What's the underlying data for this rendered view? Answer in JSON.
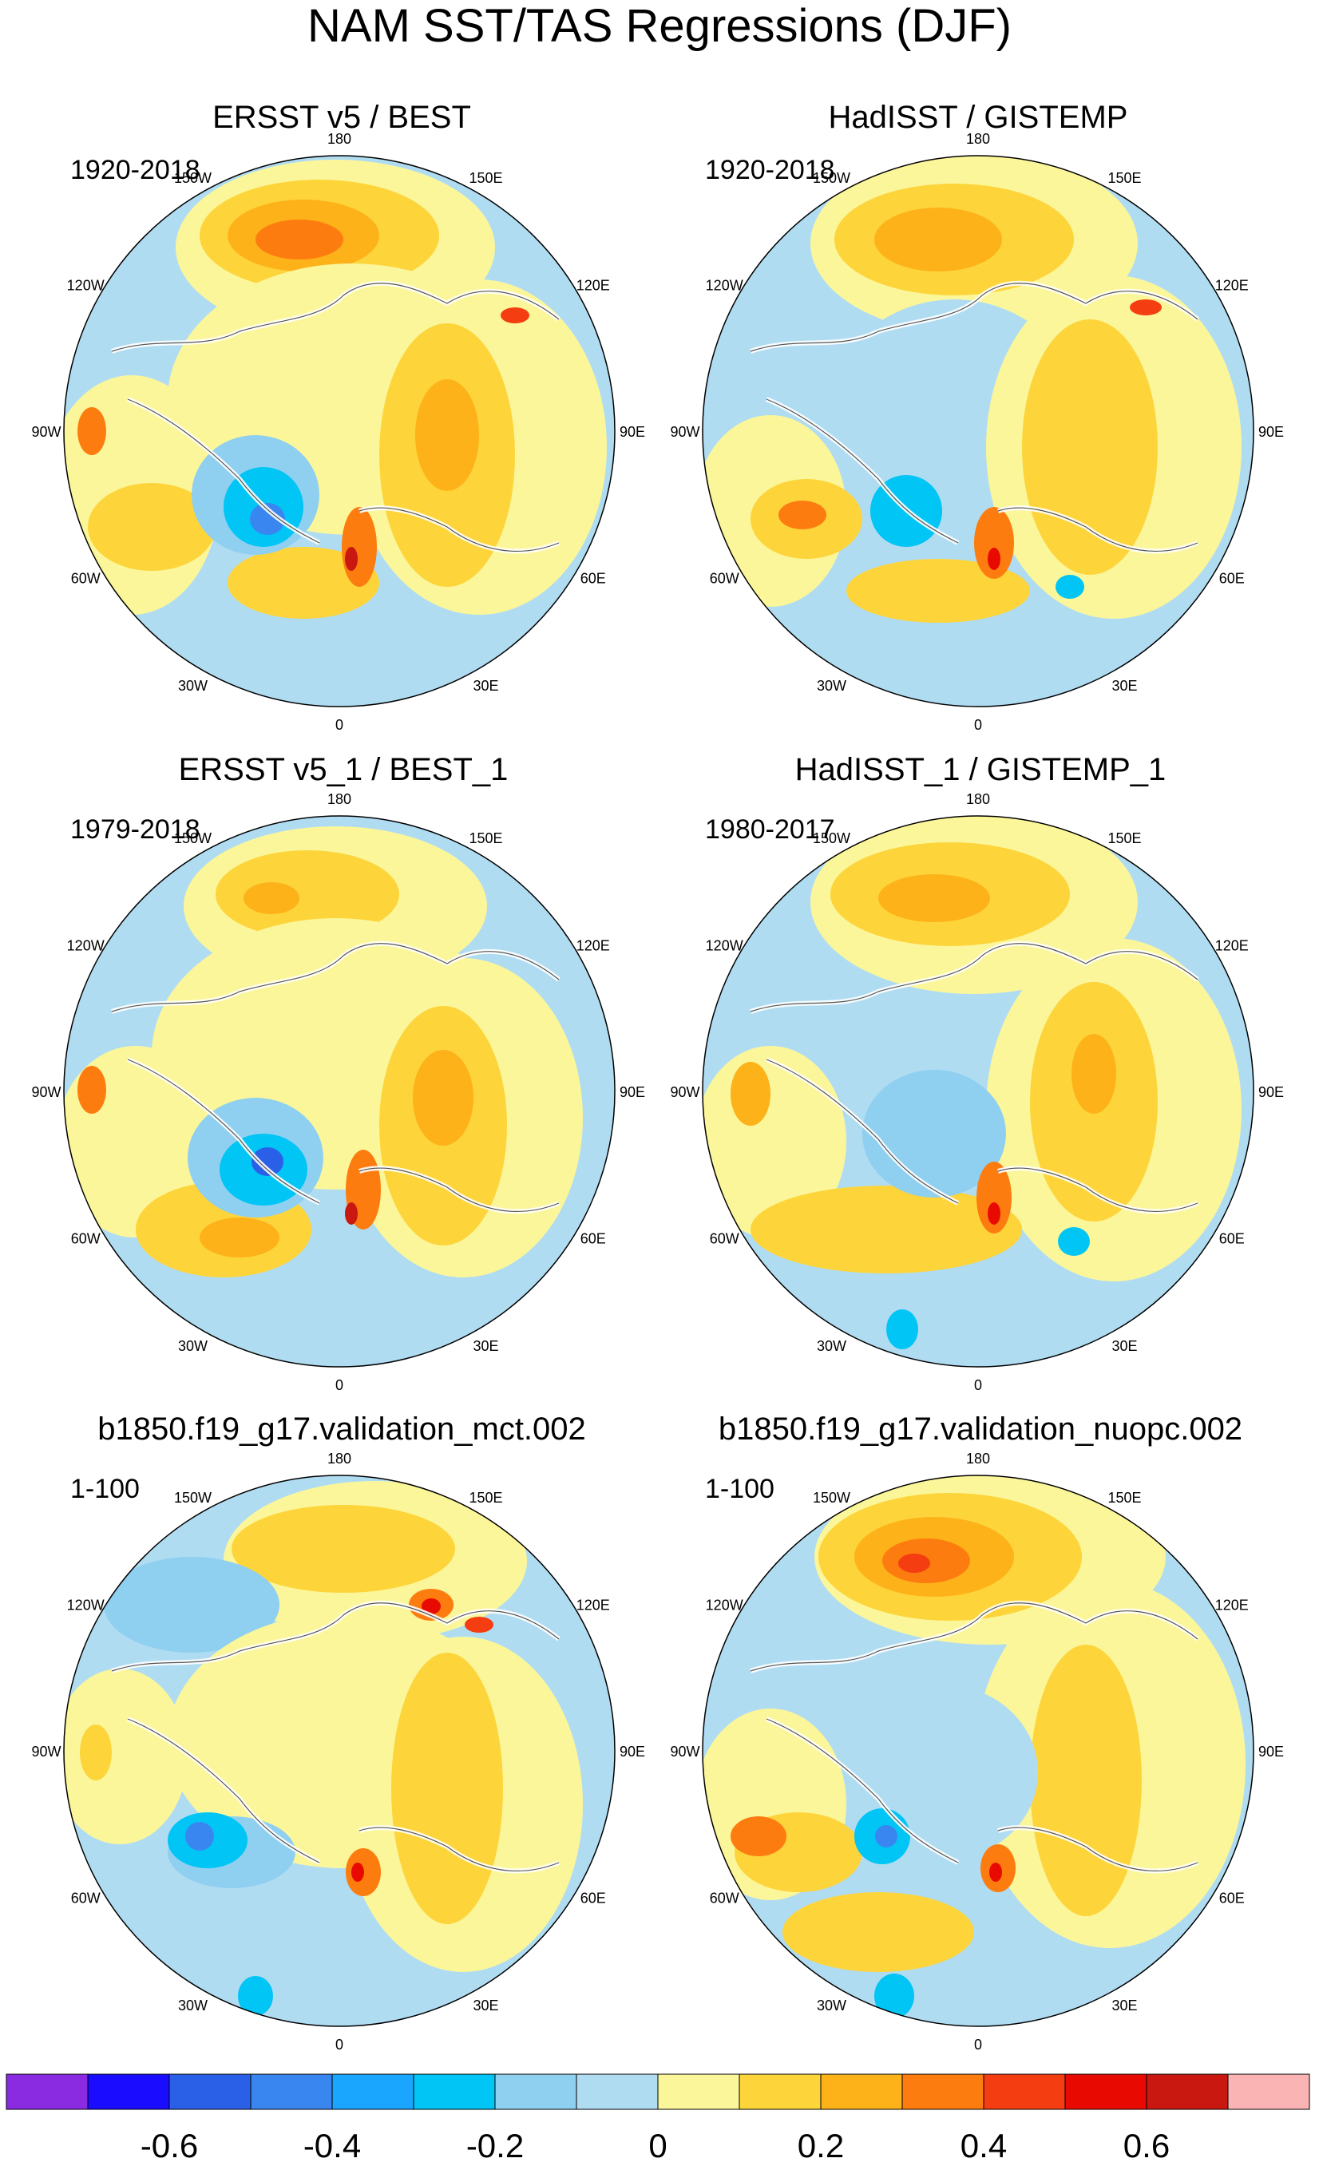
{
  "figure": {
    "title": "NAM SST/TAS Regressions (DJF)"
  },
  "chart_data": [
    {
      "type": "heatmap",
      "projection": "north-polar-stereographic",
      "title": "ERSST v5 / BEST",
      "period": "1920-2018",
      "longitude_labels": [
        "180",
        "150E",
        "120E",
        "90E",
        "60E",
        "30E",
        "0",
        "30W",
        "60W",
        "90W",
        "120W",
        "150W"
      ],
      "features": [
        {
          "name": "north-pacific-warm-center",
          "lon": -165,
          "lat": 45,
          "value": 0.4
        },
        {
          "name": "eurasia-warm-band",
          "lon": 80,
          "lat": 55,
          "value": 0.3
        },
        {
          "name": "north-america-warm",
          "lon": -95,
          "lat": 40,
          "value": 0.2
        },
        {
          "name": "labrador-greenland-cold",
          "lon": -55,
          "lat": 65,
          "value": -0.3
        },
        {
          "name": "scandinavia-warm-max",
          "lon": 20,
          "lat": 62,
          "value": 0.6
        }
      ]
    },
    {
      "type": "heatmap",
      "projection": "north-polar-stereographic",
      "title": "HadISST / GISTEMP",
      "period": "1920-2018",
      "longitude_labels": [
        "180",
        "150E",
        "120E",
        "90E",
        "60E",
        "30E",
        "0",
        "30W",
        "60W",
        "90W",
        "120W",
        "150W"
      ],
      "features": [
        {
          "name": "north-pacific-warm-center",
          "lon": -165,
          "lat": 45,
          "value": 0.3
        },
        {
          "name": "eurasia-warm-band",
          "lon": 80,
          "lat": 55,
          "value": 0.3
        },
        {
          "name": "gulf-stream-warm",
          "lon": -70,
          "lat": 38,
          "value": 0.4
        },
        {
          "name": "labrador-greenland-cold",
          "lon": -55,
          "lat": 65,
          "value": -0.3
        },
        {
          "name": "scandinavia-warm-max",
          "lon": 20,
          "lat": 62,
          "value": 0.5
        }
      ]
    },
    {
      "type": "heatmap",
      "projection": "north-polar-stereographic",
      "title": "ERSST v5_1 / BEST_1",
      "period": "1979-2018",
      "longitude_labels": [
        "180",
        "150E",
        "120E",
        "90E",
        "60E",
        "30E",
        "0",
        "30W",
        "60W",
        "90W",
        "120W",
        "150W"
      ],
      "features": [
        {
          "name": "north-pacific-warm-center",
          "lon": -165,
          "lat": 45,
          "value": 0.3
        },
        {
          "name": "eurasia-warm-band",
          "lon": 80,
          "lat": 55,
          "value": 0.3
        },
        {
          "name": "subtropical-atlantic-warm",
          "lon": -45,
          "lat": 40,
          "value": 0.3
        },
        {
          "name": "labrador-greenland-cold",
          "lon": -55,
          "lat": 65,
          "value": -0.4
        },
        {
          "name": "scandinavia-warm-max",
          "lon": 20,
          "lat": 62,
          "value": 0.6
        }
      ]
    },
    {
      "type": "heatmap",
      "projection": "north-polar-stereographic",
      "title": "HadISST_1 / GISTEMP_1",
      "period": "1980-2017",
      "longitude_labels": [
        "180",
        "150E",
        "120E",
        "90E",
        "60E",
        "30E",
        "0",
        "30W",
        "60W",
        "90W",
        "120W",
        "150W"
      ],
      "features": [
        {
          "name": "north-pacific-warm-center",
          "lon": -165,
          "lat": 45,
          "value": 0.3
        },
        {
          "name": "eurasia-warm-band",
          "lon": 80,
          "lat": 55,
          "value": 0.3
        },
        {
          "name": "subtropical-atlantic-warm",
          "lon": -50,
          "lat": 40,
          "value": 0.3
        },
        {
          "name": "labrador-greenland-cold",
          "lon": -55,
          "lat": 65,
          "value": -0.2
        },
        {
          "name": "scandinavia-warm-max",
          "lon": 20,
          "lat": 62,
          "value": 0.5
        }
      ]
    },
    {
      "type": "heatmap",
      "projection": "north-polar-stereographic",
      "title": "b1850.f19_g17.validation_mct.002",
      "period": "1-100",
      "longitude_labels": [
        "180",
        "150E",
        "120E",
        "90E",
        "60E",
        "30E",
        "0",
        "30W",
        "60W",
        "90W",
        "120W",
        "150W"
      ],
      "features": [
        {
          "name": "north-pacific-warm-center",
          "lon": -165,
          "lat": 45,
          "value": 0.3
        },
        {
          "name": "east-siberia-warm-max",
          "lon": 135,
          "lat": 62,
          "value": 0.6
        },
        {
          "name": "eurasia-warm-band",
          "lon": 80,
          "lat": 55,
          "value": 0.3
        },
        {
          "name": "labrador-cold",
          "lon": -60,
          "lat": 60,
          "value": -0.4
        },
        {
          "name": "scandinavia-warm-max",
          "lon": 20,
          "lat": 62,
          "value": 0.5
        }
      ]
    },
    {
      "type": "heatmap",
      "projection": "north-polar-stereographic",
      "title": "b1850.f19_g17.validation_nuopc.002",
      "period": "1-100",
      "longitude_labels": [
        "180",
        "150E",
        "120E",
        "90E",
        "60E",
        "30E",
        "0",
        "30W",
        "60W",
        "90W",
        "120W",
        "150W"
      ],
      "features": [
        {
          "name": "north-pacific-warm-center",
          "lon": -165,
          "lat": 45,
          "value": 0.5
        },
        {
          "name": "eurasia-warm-band",
          "lon": 80,
          "lat": 55,
          "value": 0.2
        },
        {
          "name": "gulf-stream-warm",
          "lon": -70,
          "lat": 38,
          "value": 0.4
        },
        {
          "name": "labrador-cold",
          "lon": -55,
          "lat": 62,
          "value": -0.3
        },
        {
          "name": "scandinavia-warm-max",
          "lon": 20,
          "lat": 62,
          "value": 0.5
        }
      ]
    }
  ],
  "colorbar": {
    "colors": [
      "#8a2be2",
      "#1a0cff",
      "#2a5fe8",
      "#3a86f0",
      "#1aa6ff",
      "#00c5f5",
      "#8fcff0",
      "#b0dcf2",
      "#fbf69a",
      "#fdd43a",
      "#fdb219",
      "#fd7c10",
      "#f43d10",
      "#e80a00",
      "#c81810",
      "#fbb4b4"
    ],
    "tick_labels": [
      "-0.6",
      "-0.4",
      "-0.2",
      "0",
      "0.2",
      "0.4",
      "0.6"
    ]
  }
}
